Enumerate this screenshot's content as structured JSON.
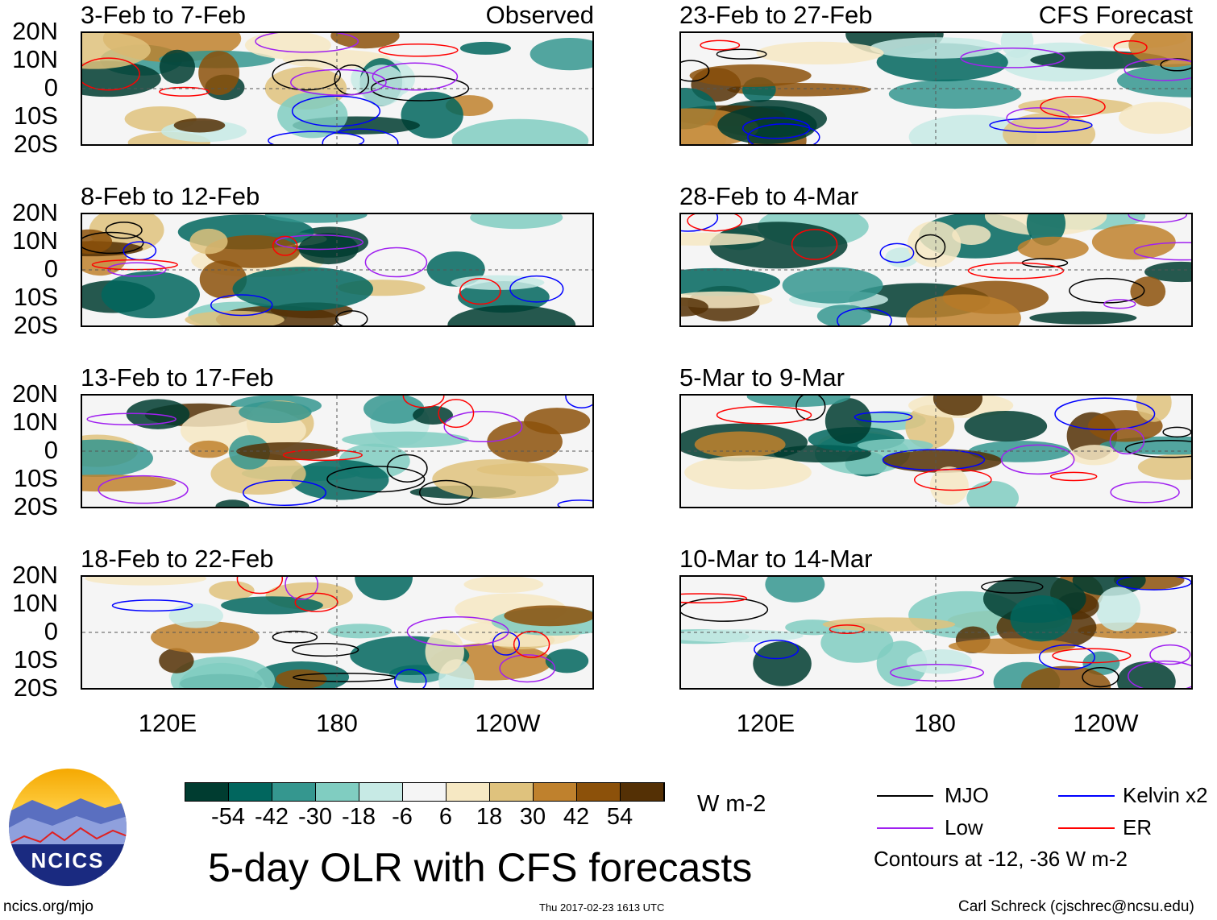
{
  "panels": [
    {
      "title": "3-Feb to 7-Feb",
      "label": "Observed",
      "col": 0,
      "row": 0
    },
    {
      "title": "8-Feb to 12-Feb",
      "label": "",
      "col": 0,
      "row": 1
    },
    {
      "title": "13-Feb to 17-Feb",
      "label": "",
      "col": 0,
      "row": 2
    },
    {
      "title": "18-Feb to 22-Feb",
      "label": "",
      "col": 0,
      "row": 3
    },
    {
      "title": "23-Feb to 27-Feb",
      "label": "CFS Forecast",
      "col": 1,
      "row": 0
    },
    {
      "title": "28-Feb to 4-Mar",
      "label": "",
      "col": 1,
      "row": 1
    },
    {
      "title": "5-Mar to 9-Mar",
      "label": "",
      "col": 1,
      "row": 2
    },
    {
      "title": "10-Mar to 14-Mar",
      "label": "",
      "col": 1,
      "row": 3
    }
  ],
  "lat_labels": [
    "20N",
    "10N",
    "0",
    "10S",
    "20S"
  ],
  "lon_labels": [
    "120E",
    "180",
    "120W"
  ],
  "colorbar": {
    "colors": [
      "#003c30",
      "#01665e",
      "#35978f",
      "#80cdc1",
      "#c7eae5",
      "#f5f5f5",
      "#f6e8c3",
      "#dfc27d",
      "#bf812d",
      "#8c510a",
      "#543005"
    ],
    "labels": [
      "-54",
      "-42",
      "-30",
      "-18",
      "-6",
      "6",
      "18",
      "30",
      "42",
      "54"
    ],
    "units": "W m-2"
  },
  "legend": {
    "items": [
      {
        "label": "MJO",
        "color": "#000000"
      },
      {
        "label": "Kelvin x2",
        "color": "#0000ff"
      },
      {
        "label": "Low",
        "color": "#a020f0"
      },
      {
        "label": "ER",
        "color": "#ff0000"
      }
    ],
    "note": "Contours at -12, -36 W m-2"
  },
  "title": "5-day OLR with CFS forecasts",
  "logo_text": "NCICS",
  "footer": {
    "url": "ncics.org/mjo",
    "timestamp": "Thu 2017-02-23 1613 UTC",
    "author": "Carl Schreck (cjschrec@ncsu.edu)"
  }
}
